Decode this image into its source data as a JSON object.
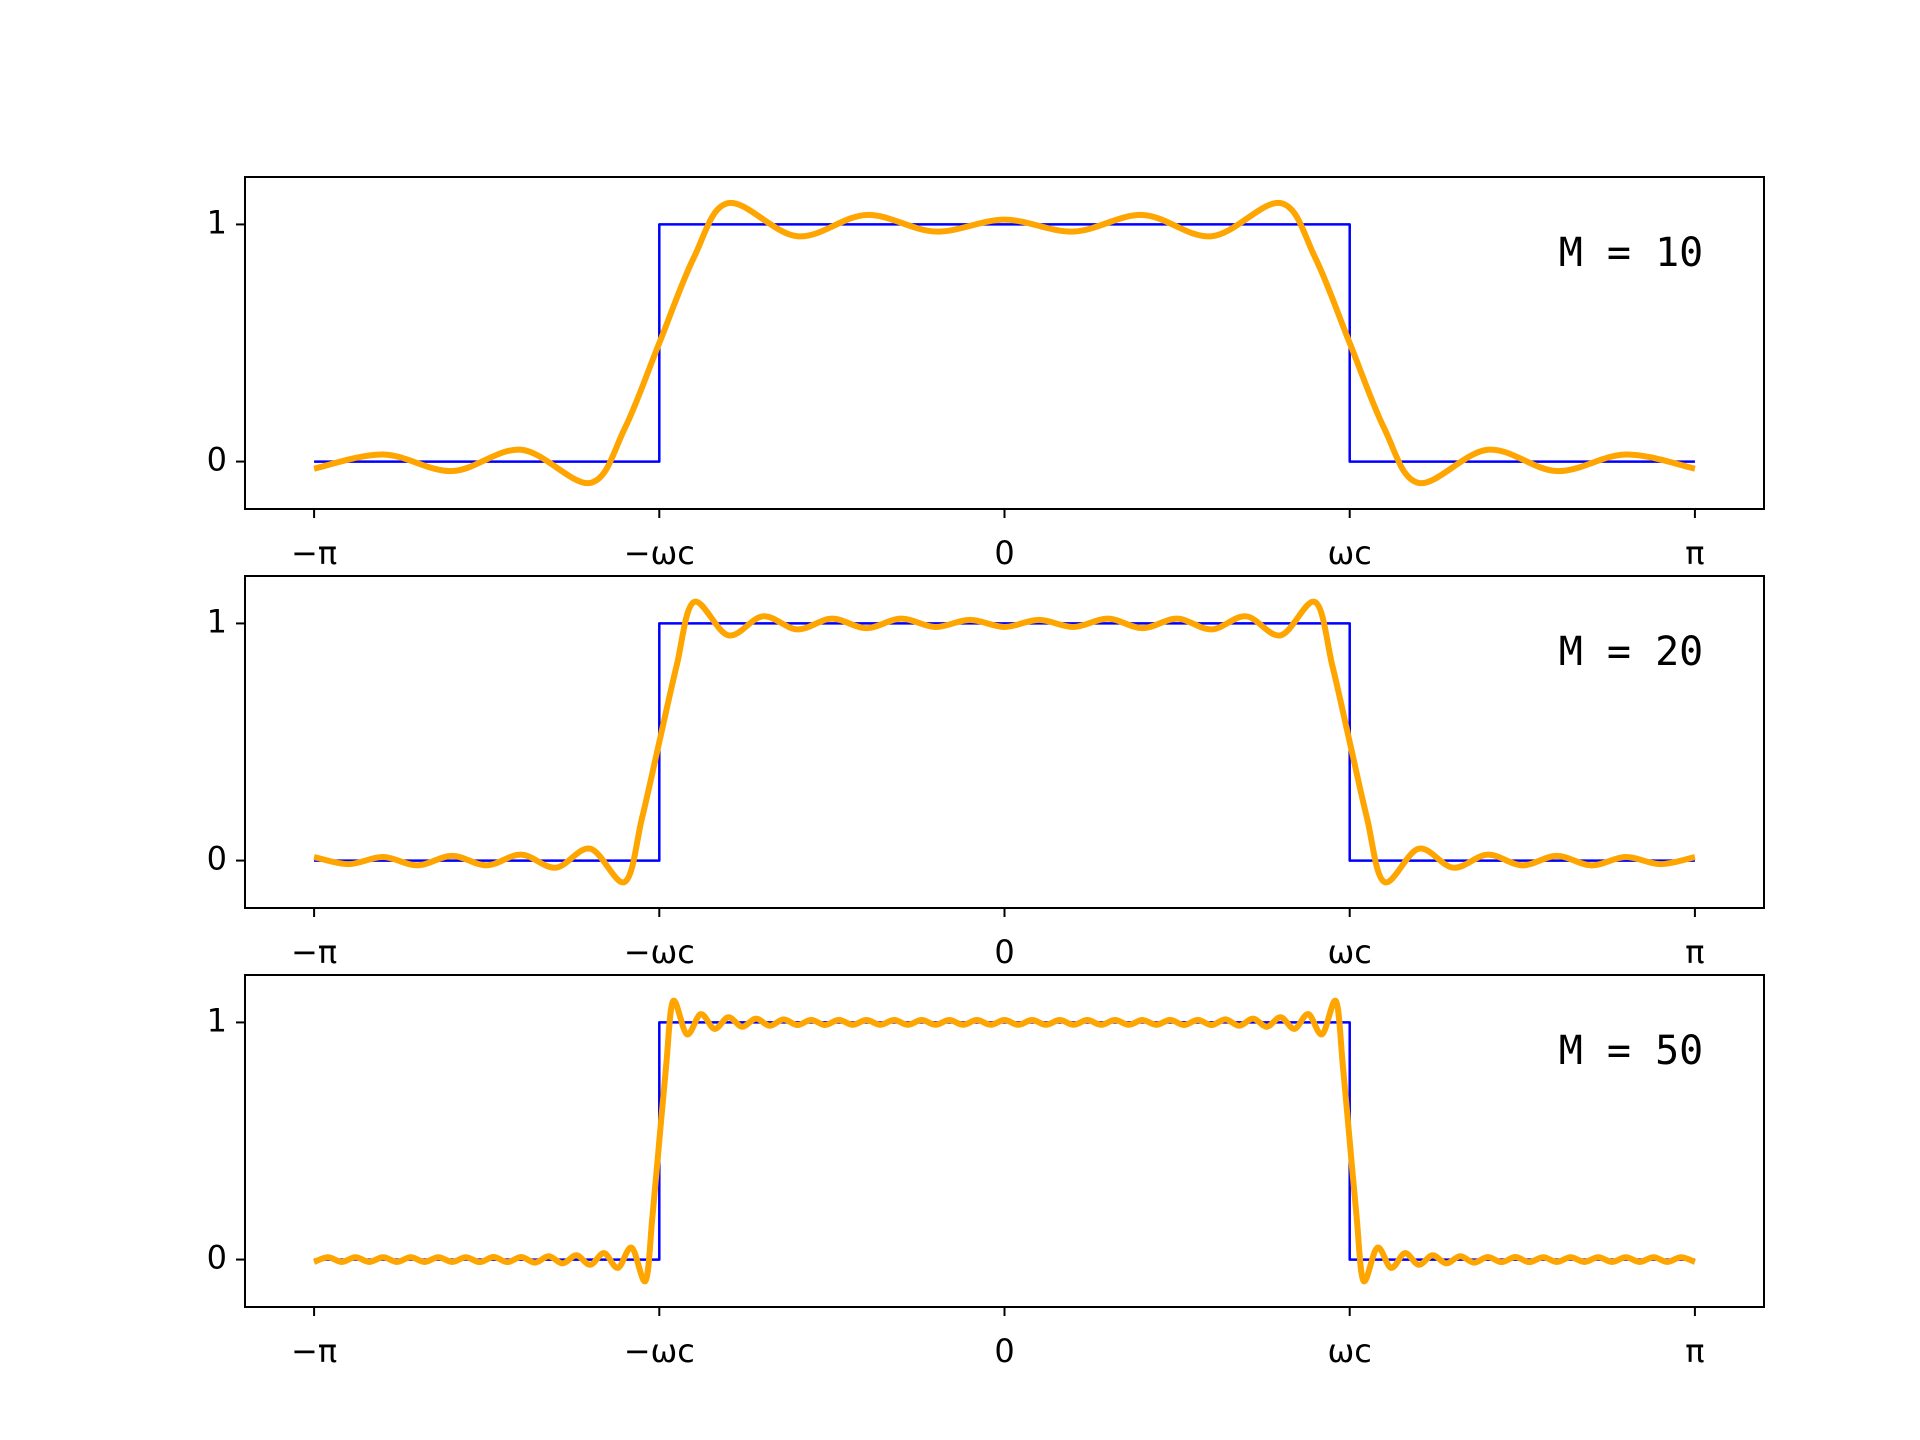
{
  "chart_data": [
    {
      "type": "line",
      "annotation": "M = 10",
      "xlim": [
        -3.456,
        3.456
      ],
      "ylim": [
        -0.2,
        1.2
      ],
      "yticks": [
        0,
        1
      ],
      "xticks": [
        {
          "value": -3.1416,
          "label": "−π"
        },
        {
          "value": -1.5708,
          "label": "−ωc"
        },
        0,
        {
          "value": 1.5708,
          "label": "ωc"
        },
        {
          "value": 3.1416,
          "label": "π"
        }
      ],
      "series": [
        {
          "color": "#0000ff",
          "x": [
            -3.1416,
            -1.5708,
            -1.5708,
            1.5708,
            1.5708,
            3.1416
          ],
          "values": [
            0,
            0,
            1,
            1,
            0,
            0
          ]
        },
        {
          "color": "#ffa500",
          "x": [
            -3.1416,
            -2.8274,
            -2.5133,
            -2.1991,
            -1.885,
            -1.7279,
            -1.5708,
            -1.4137,
            -1.2566,
            -0.9425,
            -0.6283,
            -0.3142,
            0,
            0.3142,
            0.6283,
            0.9425,
            1.2566,
            1.4137,
            1.5708,
            1.7279,
            1.885,
            2.1991,
            2.5133,
            2.8274,
            3.1416
          ],
          "values": [
            -0.03,
            0.03,
            -0.04,
            0.05,
            -0.09,
            0.14,
            0.5,
            0.86,
            1.09,
            0.95,
            1.04,
            0.97,
            1.02,
            0.97,
            1.04,
            0.95,
            1.09,
            0.86,
            0.5,
            0.14,
            -0.09,
            0.05,
            -0.04,
            0.03,
            -0.03
          ]
        }
      ]
    },
    {
      "type": "line",
      "annotation": "M = 20",
      "xlim": [
        -3.456,
        3.456
      ],
      "ylim": [
        -0.2,
        1.2
      ],
      "yticks": [
        0,
        1
      ],
      "xticks": [
        {
          "value": -3.1416,
          "label": "−π"
        },
        {
          "value": -1.5708,
          "label": "−ωc"
        },
        0,
        {
          "value": 1.5708,
          "label": "ωc"
        },
        {
          "value": 3.1416,
          "label": "π"
        }
      ],
      "series": [
        {
          "color": "#0000ff",
          "x": [
            -3.1416,
            -1.5708,
            -1.5708,
            1.5708,
            1.5708,
            3.1416
          ],
          "values": [
            0,
            0,
            1,
            1,
            0,
            0
          ]
        },
        {
          "color": "#ffa500",
          "x": [
            -3.1416,
            -2.9845,
            -2.8274,
            -2.6704,
            -2.5133,
            -2.3562,
            -2.1991,
            -2.042,
            -1.885,
            -1.7279,
            -1.6493,
            -1.5708,
            -1.4923,
            -1.4137,
            -1.2566,
            -1.0996,
            -0.9425,
            -0.7854,
            -0.6283,
            -0.4712,
            -0.3142,
            -0.1571,
            0,
            0.1571,
            0.3142,
            0.4712,
            0.6283,
            0.7854,
            0.9425,
            1.0996,
            1.2566,
            1.4137,
            1.4923,
            1.5708,
            1.6493,
            1.7279,
            1.885,
            2.042,
            2.1991,
            2.3562,
            2.5133,
            2.6704,
            2.8274,
            2.9845,
            3.1416
          ],
          "values": [
            0.015,
            -0.015,
            0.015,
            -0.02,
            0.02,
            -0.02,
            0.025,
            -0.03,
            0.05,
            -0.09,
            0.18,
            0.5,
            0.82,
            1.09,
            0.95,
            1.03,
            0.975,
            1.02,
            0.98,
            1.02,
            0.985,
            1.015,
            0.985,
            1.015,
            0.985,
            1.02,
            0.98,
            1.02,
            0.975,
            1.03,
            0.95,
            1.09,
            0.82,
            0.5,
            0.18,
            -0.09,
            0.05,
            -0.03,
            0.025,
            -0.02,
            0.02,
            -0.02,
            0.015,
            -0.015,
            0.015
          ]
        }
      ]
    },
    {
      "type": "line",
      "annotation": "M = 50",
      "xlim": [
        -3.456,
        3.456
      ],
      "ylim": [
        -0.2,
        1.2
      ],
      "yticks": [
        0,
        1
      ],
      "xticks": [
        {
          "value": -3.1416,
          "label": "−π"
        },
        {
          "value": -1.5708,
          "label": "−ωc"
        },
        0,
        {
          "value": 1.5708,
          "label": "ωc"
        },
        {
          "value": 3.1416,
          "label": "π"
        }
      ],
      "series": [
        {
          "color": "#0000ff",
          "x": [
            -3.1416,
            -1.5708,
            -1.5708,
            1.5708,
            1.5708,
            3.1416
          ],
          "values": [
            0,
            0,
            1,
            1,
            0,
            0
          ]
        },
        {
          "color": "#ffa500",
          "x": [
            -3.1416,
            -3.0788,
            -3.0159,
            -2.9531,
            -2.8903,
            -2.8274,
            -2.7646,
            -2.7018,
            -2.6389,
            -2.5761,
            -2.5133,
            -2.4504,
            -2.3876,
            -2.3248,
            -2.2619,
            -2.1991,
            -2.1363,
            -2.0735,
            -2.0106,
            -1.9478,
            -1.885,
            -1.8221,
            -1.7593,
            -1.6965,
            -1.6336,
            -1.6022,
            -1.5708,
            -1.5394,
            -1.508,
            -1.4451,
            -1.3823,
            -1.3195,
            -1.2566,
            -1.1938,
            -1.131,
            -1.0681,
            -1.0053,
            -0.9425,
            -0.8796,
            -0.8168,
            -0.754,
            -0.6912,
            -0.6283,
            -0.5655,
            -0.5027,
            -0.4398,
            -0.377,
            -0.3142,
            -0.2513,
            -0.1885,
            -0.1257,
            -0.0628,
            0,
            0.0628,
            0.1257,
            0.1885,
            0.2513,
            0.3142,
            0.377,
            0.4398,
            0.5027,
            0.5655,
            0.6283,
            0.6912,
            0.754,
            0.8168,
            0.8796,
            0.9425,
            1.0053,
            1.0681,
            1.131,
            1.1938,
            1.2566,
            1.3195,
            1.3823,
            1.4451,
            1.508,
            1.5394,
            1.5708,
            1.6022,
            1.6336,
            1.6965,
            1.7593,
            1.8221,
            1.885,
            1.9478,
            2.0106,
            2.0735,
            2.1363,
            2.1991,
            2.2619,
            2.3248,
            2.3876,
            2.4504,
            2.5133,
            2.5761,
            2.6389,
            2.7018,
            2.7646,
            2.8274,
            2.8903,
            2.9531,
            3.0159,
            3.0788,
            3.1416
          ],
          "values": [
            -0.01,
            0.01,
            -0.01,
            0.01,
            -0.01,
            0.01,
            -0.01,
            0.01,
            -0.01,
            0.01,
            -0.01,
            0.01,
            -0.011,
            0.011,
            -0.011,
            0.011,
            -0.013,
            0.014,
            -0.016,
            0.018,
            -0.022,
            0.027,
            -0.035,
            0.05,
            -0.09,
            0.18,
            0.5,
            0.82,
            1.09,
            0.95,
            1.035,
            0.973,
            1.022,
            0.982,
            1.016,
            0.986,
            1.013,
            0.989,
            1.011,
            0.989,
            1.011,
            0.99,
            1.01,
            0.99,
            1.01,
            0.99,
            1.01,
            0.99,
            1.01,
            0.99,
            1.01,
            0.99,
            1.01,
            0.99,
            1.01,
            0.99,
            1.01,
            0.99,
            1.01,
            0.99,
            1.01,
            0.99,
            1.01,
            0.99,
            1.011,
            0.989,
            1.011,
            0.989,
            1.013,
            0.986,
            1.016,
            0.982,
            1.022,
            0.973,
            1.035,
            0.95,
            1.09,
            0.82,
            0.5,
            0.18,
            -0.09,
            0.05,
            -0.035,
            0.027,
            -0.022,
            0.018,
            -0.016,
            0.014,
            -0.013,
            0.011,
            -0.011,
            0.011,
            -0.011,
            0.01,
            -0.01,
            0.01,
            -0.01,
            0.01,
            -0.01,
            0.01,
            -0.01,
            0.01,
            -0.01,
            0.01,
            -0.01
          ]
        }
      ]
    }
  ]
}
